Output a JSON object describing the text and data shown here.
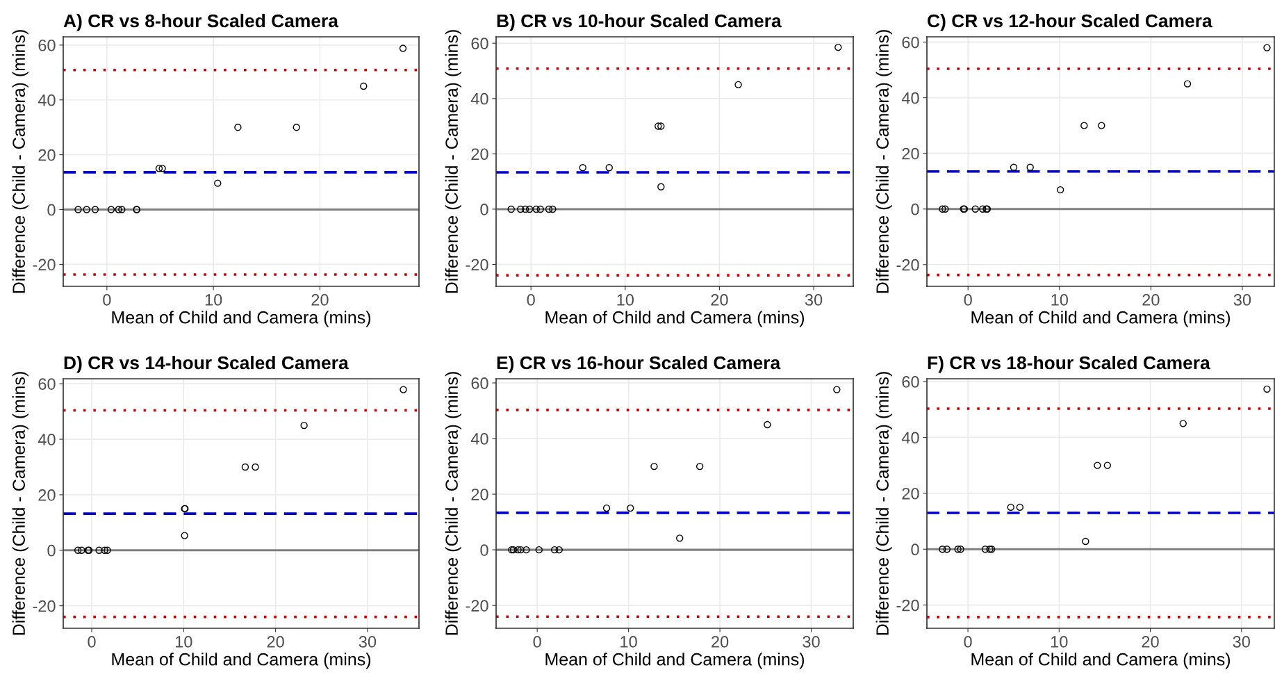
{
  "chart_data": [
    {
      "type": "scatter",
      "title": "A) CR vs 8-hour Scaled Camera",
      "xlabel": "Mean of Child and Camera (mins)",
      "ylabel": "Difference (Child - Camera) (mins)",
      "marker": "circle",
      "grid": true,
      "series": [
        {
          "color": "#000000",
          "x": [
            -2.7,
            -1.9,
            -1.1,
            0.4,
            1.1,
            1.4,
            2.8,
            2.8,
            4.9,
            5.2,
            10.4,
            12.3,
            17.8,
            24.1,
            27.8
          ],
          "values": [
            0,
            0,
            0,
            0,
            0,
            0,
            0,
            0,
            15,
            15,
            9.6,
            30,
            30,
            45,
            58.8
          ]
        }
      ],
      "xlim": [
        -4.1,
        29.3
      ],
      "xticks": [
        0,
        10,
        20
      ],
      "ylim": [
        -28,
        63
      ],
      "yticks": [
        -20,
        0,
        20,
        40,
        60
      ],
      "ref_lines": [
        {
          "axis": "y",
          "value": 0,
          "color": "#7f7f7f",
          "line_style": "solid"
        },
        {
          "axis": "y",
          "value": 13.6,
          "color": "#0000cc",
          "line_style": "dashed"
        },
        {
          "axis": "y",
          "value": 50.9,
          "color": "#cc0000",
          "line_style": "dotted"
        },
        {
          "axis": "y",
          "value": -23.7,
          "color": "#cc0000",
          "line_style": "dotted"
        }
      ]
    },
    {
      "type": "scatter",
      "title": "B) CR vs 10-hour Scaled Camera",
      "xlabel": "Mean of Child and Camera (mins)",
      "ylabel": "Difference (Child - Camera) (mins)",
      "marker": "circle",
      "grid": true,
      "series": [
        {
          "color": "#000000",
          "x": [
            -2.1,
            -1.1,
            -0.6,
            -0.15,
            0.56,
            1.0,
            1.9,
            2.3,
            5.5,
            8.3,
            13.5,
            13.8,
            13.8,
            22.0,
            32.6
          ],
          "values": [
            0,
            0,
            0,
            0,
            0,
            0,
            0,
            0,
            15,
            15,
            30,
            30,
            8.1,
            45,
            58.5
          ]
        }
      ],
      "xlim": [
        -3.7,
        34.2
      ],
      "xticks": [
        0,
        10,
        20,
        30
      ],
      "ylim": [
        -27.9,
        62.3
      ],
      "yticks": [
        -20,
        0,
        20,
        40,
        60
      ],
      "ref_lines": [
        {
          "axis": "y",
          "value": 0,
          "color": "#7f7f7f",
          "line_style": "solid"
        },
        {
          "axis": "y",
          "value": 13.3,
          "color": "#0000cc",
          "line_style": "dashed"
        },
        {
          "axis": "y",
          "value": 50.8,
          "color": "#cc0000",
          "line_style": "dotted"
        },
        {
          "axis": "y",
          "value": -23.9,
          "color": "#cc0000",
          "line_style": "dotted"
        }
      ]
    },
    {
      "type": "scatter",
      "title": "C) CR vs 12-hour Scaled Camera",
      "xlabel": "Mean of Child and Camera (mins)",
      "ylabel": "Difference (Child - Camera) (mins)",
      "marker": "circle",
      "grid": true,
      "series": [
        {
          "color": "#000000",
          "x": [
            -2.8,
            -2.5,
            -0.5,
            -0.4,
            0.8,
            1.6,
            2.0,
            2.1,
            5.0,
            6.8,
            10.1,
            12.7,
            14.6,
            24.0,
            32.7
          ],
          "values": [
            0,
            0,
            0,
            0,
            0,
            0,
            0,
            0,
            15,
            15,
            6.9,
            30,
            30,
            45,
            58
          ]
        }
      ],
      "xlim": [
        -4.5,
        33.5
      ],
      "xticks": [
        0,
        10,
        20,
        30
      ],
      "ylim": [
        -27.8,
        61.9
      ],
      "yticks": [
        -20,
        0,
        20,
        40,
        60
      ],
      "ref_lines": [
        {
          "axis": "y",
          "value": 0,
          "color": "#7f7f7f",
          "line_style": "solid"
        },
        {
          "axis": "y",
          "value": 13.5,
          "color": "#0000cc",
          "line_style": "dashed"
        },
        {
          "axis": "y",
          "value": 50.4,
          "color": "#cc0000",
          "line_style": "dotted"
        },
        {
          "axis": "y",
          "value": -23.7,
          "color": "#cc0000",
          "line_style": "dotted"
        }
      ]
    },
    {
      "type": "scatter",
      "title": "D) CR vs 14-hour Scaled Camera",
      "xlabel": "Mean of Child and Camera (mins)",
      "ylabel": "Difference (Child - Camera) (mins)",
      "marker": "circle",
      "grid": true,
      "series": [
        {
          "color": "#000000",
          "x": [
            -1.5,
            -1.1,
            -0.4,
            -0.3,
            0.8,
            1.4,
            1.7,
            10.1,
            10.15,
            10.1,
            16.7,
            17.8,
            23.1,
            33.9
          ],
          "values": [
            0,
            0,
            0,
            0,
            0,
            0,
            0,
            15,
            15,
            5.3,
            30,
            30,
            45,
            57.9
          ]
        }
      ],
      "xlim": [
        -3.1,
        35.6
      ],
      "xticks": [
        0,
        10,
        20,
        30
      ],
      "ylim": [
        -28.1,
        61.8
      ],
      "yticks": [
        -20,
        0,
        20,
        40,
        60
      ],
      "ref_lines": [
        {
          "axis": "y",
          "value": 0,
          "color": "#7f7f7f",
          "line_style": "solid"
        },
        {
          "axis": "y",
          "value": 13.2,
          "color": "#0000cc",
          "line_style": "dashed"
        },
        {
          "axis": "y",
          "value": 50.4,
          "color": "#cc0000",
          "line_style": "dotted"
        },
        {
          "axis": "y",
          "value": -24.0,
          "color": "#cc0000",
          "line_style": "dotted"
        }
      ]
    },
    {
      "type": "scatter",
      "title": "E) CR vs 16-hour Scaled Camera",
      "xlabel": "Mean of Child and Camera (mins)",
      "ylabel": "Difference (Child - Camera) (mins)",
      "marker": "circle",
      "grid": true,
      "series": [
        {
          "color": "#000000",
          "x": [
            -2.8,
            -2.6,
            -2.1,
            -1.8,
            -1.2,
            0.2,
            1.9,
            2.4,
            7.6,
            10.2,
            15.6,
            12.8,
            17.8,
            25.2,
            32.8
          ],
          "values": [
            0,
            0,
            0,
            0,
            0,
            0,
            0,
            0,
            15,
            15,
            4.2,
            30,
            30,
            45,
            57.6
          ]
        }
      ],
      "xlim": [
        -4.5,
        34.6
      ],
      "xticks": [
        0,
        10,
        20,
        30
      ],
      "ylim": [
        -28.2,
        61.5
      ],
      "yticks": [
        -20,
        0,
        20,
        40,
        60
      ],
      "ref_lines": [
        {
          "axis": "y",
          "value": 0,
          "color": "#7f7f7f",
          "line_style": "solid"
        },
        {
          "axis": "y",
          "value": 13.3,
          "color": "#0000cc",
          "line_style": "dashed"
        },
        {
          "axis": "y",
          "value": 50.3,
          "color": "#cc0000",
          "line_style": "dotted"
        },
        {
          "axis": "y",
          "value": -24.0,
          "color": "#cc0000",
          "line_style": "dotted"
        }
      ]
    },
    {
      "type": "scatter",
      "title": "F) CR vs 18-hour Scaled Camera",
      "xlabel": "Mean of Child and Camera (mins)",
      "ylabel": "Difference (Child - Camera) (mins)",
      "marker": "circle",
      "grid": true,
      "series": [
        {
          "color": "#000000",
          "x": [
            -2.8,
            -2.3,
            -1.1,
            -0.8,
            1.9,
            2.4,
            2.6,
            4.7,
            5.7,
            12.9,
            14.2,
            15.3,
            23.6,
            32.8
          ],
          "values": [
            0,
            0,
            0,
            0,
            0,
            0,
            0,
            15,
            15,
            2.8,
            30,
            30,
            45,
            57.3
          ]
        }
      ],
      "xlim": [
        -4.5,
        33.6
      ],
      "xticks": [
        0,
        10,
        20,
        30
      ],
      "ylim": [
        -28.3,
        61.0
      ],
      "yticks": [
        -20,
        0,
        20,
        40,
        60
      ],
      "ref_lines": [
        {
          "axis": "y",
          "value": 0,
          "color": "#7f7f7f",
          "line_style": "solid"
        },
        {
          "axis": "y",
          "value": 13.0,
          "color": "#0000cc",
          "line_style": "dashed"
        },
        {
          "axis": "y",
          "value": 50.3,
          "color": "#cc0000",
          "line_style": "dotted"
        },
        {
          "axis": "y",
          "value": -24.3,
          "color": "#cc0000",
          "line_style": "dotted"
        }
      ]
    }
  ]
}
